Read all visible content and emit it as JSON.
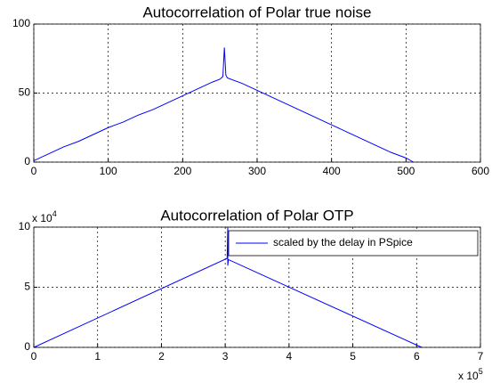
{
  "chart_data": [
    {
      "type": "line",
      "title": "Autocorrelation of Polar true noise",
      "series": [
        {
          "name": null,
          "color": "#0000ff",
          "x": [
            0,
            20,
            40,
            60,
            80,
            100,
            120,
            140,
            160,
            180,
            200,
            220,
            240,
            250,
            254,
            256,
            258,
            260,
            280,
            300,
            320,
            340,
            360,
            380,
            400,
            420,
            440,
            460,
            480,
            500,
            510
          ],
          "values": [
            1,
            6,
            11,
            15,
            20,
            25,
            29,
            34,
            38,
            43,
            48,
            53,
            58,
            60,
            62,
            83,
            63,
            61,
            57,
            52,
            47,
            42,
            37,
            32,
            27,
            22,
            17,
            12,
            7,
            3,
            0
          ]
        }
      ],
      "xlim": [
        0,
        600
      ],
      "xticks": [
        0,
        100,
        200,
        300,
        400,
        500,
        600
      ],
      "ylim": [
        0,
        100
      ],
      "yticks": [
        0,
        50,
        100
      ],
      "grid": true
    },
    {
      "type": "line",
      "title": "Autocorrelation of Polar OTP",
      "series": [
        {
          "name": "scaled by the delay in PSpice",
          "color": "#0000ff",
          "x": [
            0,
            3.03,
            3.04,
            3.04,
            3.05,
            6.08
          ],
          "values": [
            0,
            7.4,
            10,
            6.8,
            7.3,
            0
          ]
        }
      ],
      "xlim": [
        0,
        7
      ],
      "xticks": [
        0,
        1,
        2,
        3,
        4,
        5,
        6,
        7
      ],
      "ylim": [
        0,
        10
      ],
      "yticks": [
        0,
        5,
        10
      ],
      "grid": true,
      "legend": "upper right",
      "x_multiplier": {
        "base": "x 10",
        "exponent": "5"
      },
      "y_multiplier": {
        "base": "x 10",
        "exponent": "4"
      }
    }
  ]
}
